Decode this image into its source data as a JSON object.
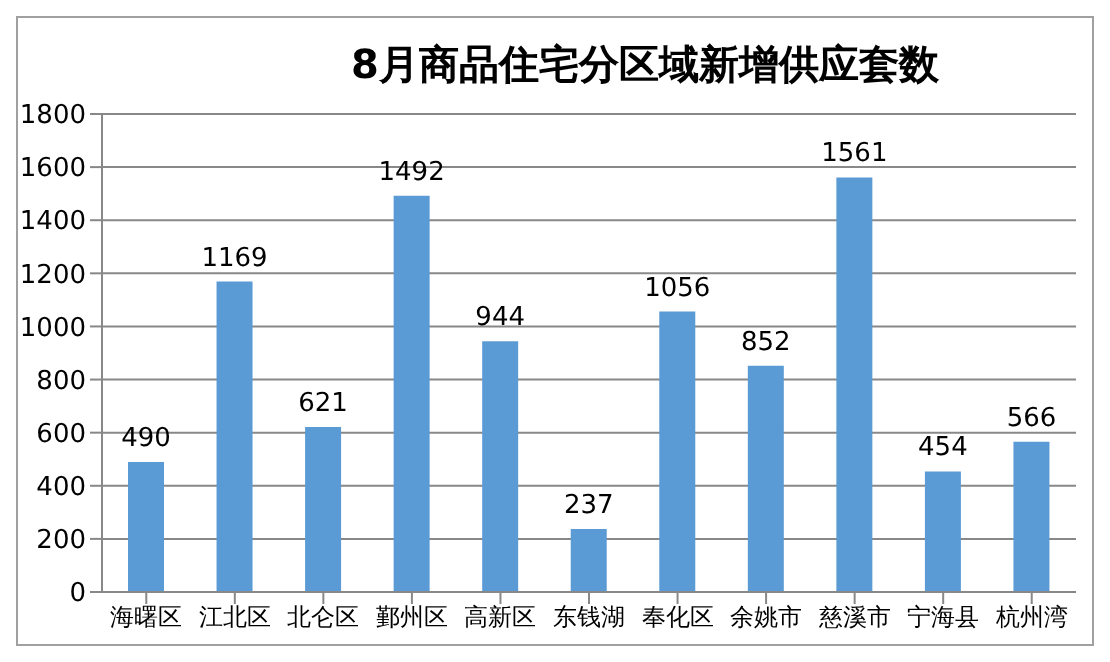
{
  "chart_data": {
    "type": "bar",
    "title": "8月商品住宅分区域新增供应套数",
    "categories": [
      "海曙区",
      "江北区",
      "北仑区",
      "鄞州区",
      "高新区",
      "东钱湖",
      "奉化区",
      "余姚市",
      "慈溪市",
      "宁海县",
      "杭州湾"
    ],
    "values": [
      490,
      1169,
      621,
      1492,
      944,
      237,
      1056,
      852,
      1561,
      454,
      566
    ],
    "color": "#5b9bd5",
    "ylim": [
      0,
      1800
    ],
    "yticks": [
      0,
      200,
      400,
      600,
      800,
      1000,
      1200,
      1400,
      1600,
      1800
    ],
    "grid": "y",
    "data_labels": true,
    "legend": false
  }
}
